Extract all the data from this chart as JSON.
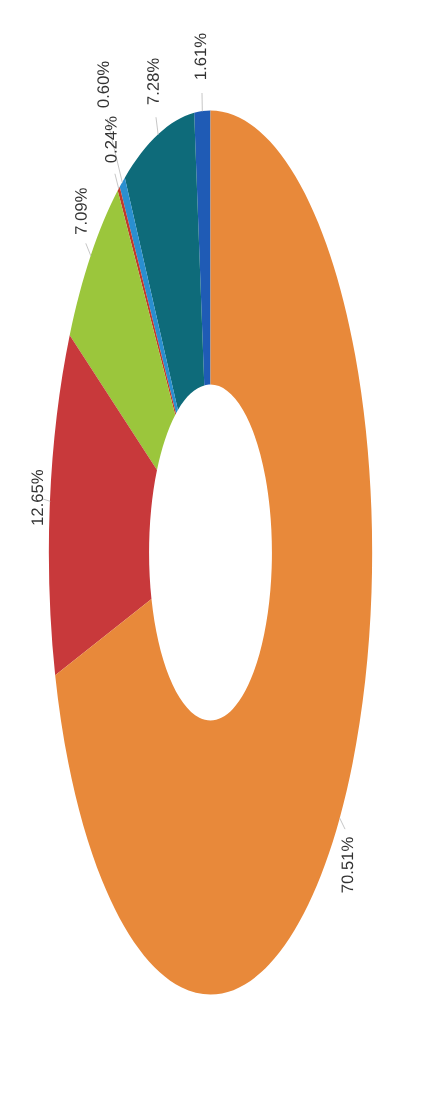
{
  "chart_data": {
    "type": "donut",
    "categories": [
      null,
      null,
      null,
      null,
      null,
      null,
      null
    ],
    "values": [
      1.61,
      7.28,
      0.6,
      0.24,
      7.09,
      12.65,
      70.51
    ],
    "colors": [
      "#1f5bb5",
      "#0e6b7a",
      "#2a8fd0",
      "#c0392b",
      "#9bc63c",
      "#c8393b",
      "#e8893a"
    ],
    "value_labels": [
      "1.61%",
      "7.28%",
      "0.60%",
      "0.24%",
      "7.09%",
      "12.65%",
      "70.51%"
    ]
  }
}
